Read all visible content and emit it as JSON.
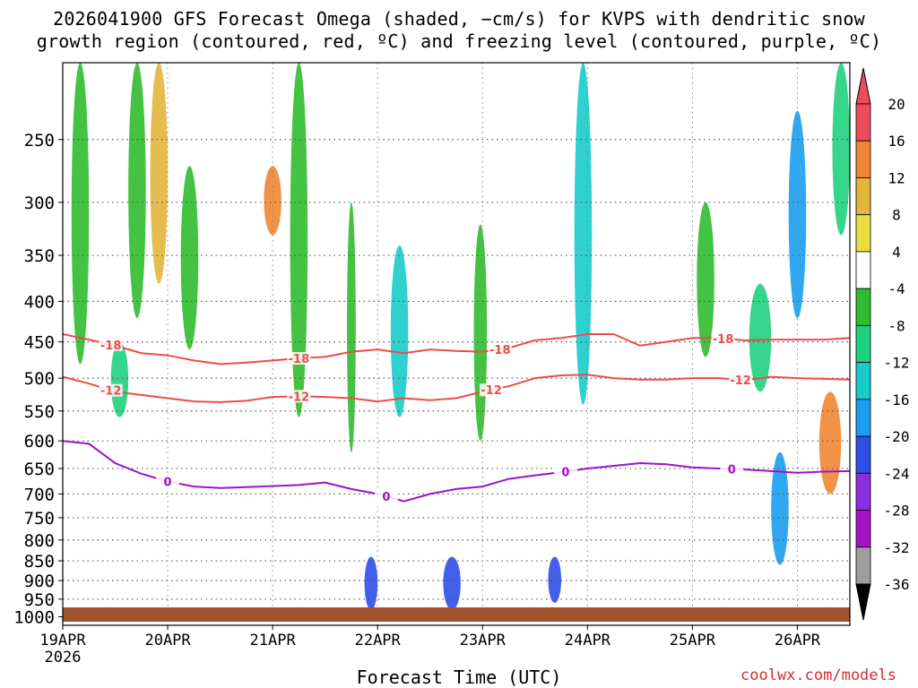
{
  "title_line1": "2026041900 GFS Forecast Omega (shaded, −cm/s) for KVPS with dendritic snow",
  "title_line2": "growth region (contoured, red, ºC) and freezing level (contoured, purple, ºC)",
  "credit": "coolwx.com/models",
  "chart_data": {
    "type": "heatmap",
    "title": "2026041900 GFS Forecast Omega (shaded, −cm/s) for KVPS with dendritic snow growth region (contoured, red, ºC) and freezing level (contoured, purple, ºC)",
    "xlabel": "Forecast Time (UTC)",
    "ylabel": "",
    "x_ticks": [
      "19APR",
      "20APR",
      "21APR",
      "22APR",
      "23APR",
      "24APR",
      "25APR",
      "26APR"
    ],
    "x_tick_year": "2026",
    "xlim_hours": [
      0,
      180
    ],
    "y_ticks": [
      "250",
      "300",
      "350",
      "400",
      "450",
      "500",
      "550",
      "600",
      "650",
      "700",
      "750",
      "800",
      "850",
      "900",
      "950",
      "1000"
    ],
    "ylim_hpa": [
      1025,
      200
    ],
    "colorbar_labels": [
      "20",
      "16",
      "12",
      "8",
      "4",
      "-4",
      "-8",
      "-12",
      "-16",
      "-20",
      "-24",
      "-28",
      "-32",
      "-36"
    ],
    "colorbar_colors": [
      "#ec4c5c",
      "#ef8633",
      "#e3b53b",
      "#e8df3f",
      "#ffffff",
      "#2fbc2c",
      "#1fd07e",
      "#17cbcb",
      "#1a9ff0",
      "#2e4fe6",
      "#8d2ce0",
      "#a513c8",
      "#9d9d9d"
    ],
    "contours": [
      {
        "name": "-18",
        "label": "-18",
        "color": "#ec4c4c",
        "points": [
          [
            0,
            440
          ],
          [
            6,
            447
          ],
          [
            12,
            455
          ],
          [
            18,
            465
          ],
          [
            24,
            468
          ],
          [
            30,
            475
          ],
          [
            36,
            480
          ],
          [
            42,
            478
          ],
          [
            48,
            475
          ],
          [
            54,
            472
          ],
          [
            60,
            470
          ],
          [
            66,
            463
          ],
          [
            72,
            460
          ],
          [
            78,
            465
          ],
          [
            84,
            460
          ],
          [
            90,
            462
          ],
          [
            96,
            463
          ],
          [
            102,
            458
          ],
          [
            108,
            448
          ],
          [
            114,
            445
          ],
          [
            120,
            440
          ],
          [
            126,
            440
          ],
          [
            132,
            455
          ],
          [
            138,
            450
          ],
          [
            144,
            445
          ],
          [
            150,
            445
          ],
          [
            156,
            448
          ],
          [
            162,
            447
          ],
          [
            168,
            447
          ],
          [
            174,
            447
          ],
          [
            180,
            445
          ]
        ],
        "label_hours": [
          11,
          54,
          100,
          151
        ]
      },
      {
        "name": "-12",
        "label": "-12",
        "color": "#ec4c4c",
        "points": [
          [
            0,
            498
          ],
          [
            6,
            508
          ],
          [
            12,
            520
          ],
          [
            18,
            525
          ],
          [
            24,
            530
          ],
          [
            30,
            535
          ],
          [
            36,
            536
          ],
          [
            42,
            534
          ],
          [
            48,
            528
          ],
          [
            54,
            527
          ],
          [
            60,
            528
          ],
          [
            66,
            530
          ],
          [
            72,
            535
          ],
          [
            78,
            530
          ],
          [
            84,
            533
          ],
          [
            90,
            530
          ],
          [
            96,
            520
          ],
          [
            102,
            512
          ],
          [
            108,
            500
          ],
          [
            114,
            496
          ],
          [
            120,
            495
          ],
          [
            126,
            500
          ],
          [
            132,
            502
          ],
          [
            138,
            502
          ],
          [
            144,
            500
          ],
          [
            150,
            500
          ],
          [
            156,
            503
          ],
          [
            162,
            498
          ],
          [
            168,
            500
          ],
          [
            174,
            501
          ],
          [
            180,
            502
          ]
        ],
        "label_hours": [
          11,
          54,
          98,
          155
        ]
      },
      {
        "name": "0",
        "label": "0",
        "color": "#9a14c8",
        "points": [
          [
            0,
            600
          ],
          [
            6,
            605
          ],
          [
            12,
            640
          ],
          [
            18,
            660
          ],
          [
            24,
            675
          ],
          [
            30,
            685
          ],
          [
            36,
            688
          ],
          [
            42,
            686
          ],
          [
            48,
            684
          ],
          [
            54,
            682
          ],
          [
            60,
            677
          ],
          [
            66,
            690
          ],
          [
            72,
            700
          ],
          [
            78,
            715
          ],
          [
            84,
            700
          ],
          [
            90,
            690
          ],
          [
            96,
            685
          ],
          [
            102,
            670
          ],
          [
            108,
            663
          ],
          [
            114,
            657
          ],
          [
            120,
            650
          ],
          [
            126,
            645
          ],
          [
            132,
            640
          ],
          [
            138,
            642
          ],
          [
            144,
            648
          ],
          [
            150,
            650
          ],
          [
            156,
            652
          ],
          [
            162,
            655
          ],
          [
            168,
            658
          ],
          [
            174,
            656
          ],
          [
            180,
            655
          ]
        ],
        "label_hours": [
          24,
          74,
          115,
          153
        ]
      }
    ],
    "omega_features": [
      {
        "t0": 2,
        "t1": 6,
        "p0": 200,
        "p1": 480,
        "value": -8
      },
      {
        "t0": 11,
        "t1": 15,
        "p0": 450,
        "p1": 560,
        "value": -12
      },
      {
        "t0": 15,
        "t1": 19,
        "p0": 200,
        "p1": 420,
        "value": -8
      },
      {
        "t0": 20,
        "t1": 24,
        "p0": 200,
        "p1": 380,
        "value": 8
      },
      {
        "t0": 27,
        "t1": 31,
        "p0": 270,
        "p1": 460,
        "value": -8
      },
      {
        "t0": 46,
        "t1": 50,
        "p0": 270,
        "p1": 330,
        "value": 12
      },
      {
        "t0": 52,
        "t1": 56,
        "p0": 200,
        "p1": 560,
        "value": -8
      },
      {
        "t0": 65,
        "t1": 67,
        "p0": 300,
        "p1": 620,
        "value": -8
      },
      {
        "t0": 69,
        "t1": 72,
        "p0": 840,
        "p1": 980,
        "value": -24
      },
      {
        "t0": 75,
        "t1": 79,
        "p0": 340,
        "p1": 560,
        "value": -16
      },
      {
        "t0": 87,
        "t1": 91,
        "p0": 840,
        "p1": 980,
        "value": -24
      },
      {
        "t0": 94,
        "t1": 97,
        "p0": 320,
        "p1": 600,
        "value": -8
      },
      {
        "t0": 111,
        "t1": 114,
        "p0": 840,
        "p1": 960,
        "value": -24
      },
      {
        "t0": 117,
        "t1": 121,
        "p0": 200,
        "p1": 540,
        "value": -16
      },
      {
        "t0": 145,
        "t1": 149,
        "p0": 300,
        "p1": 470,
        "value": -8
      },
      {
        "t0": 157,
        "t1": 162,
        "p0": 380,
        "p1": 520,
        "value": -12
      },
      {
        "t0": 162,
        "t1": 166,
        "p0": 620,
        "p1": 860,
        "value": -20
      },
      {
        "t0": 166,
        "t1": 170,
        "p0": 230,
        "p1": 420,
        "value": -20
      },
      {
        "t0": 173,
        "t1": 178,
        "p0": 520,
        "p1": 700,
        "value": 12
      },
      {
        "t0": 176,
        "t1": 180,
        "p0": 200,
        "p1": 330,
        "value": -12
      }
    ]
  }
}
